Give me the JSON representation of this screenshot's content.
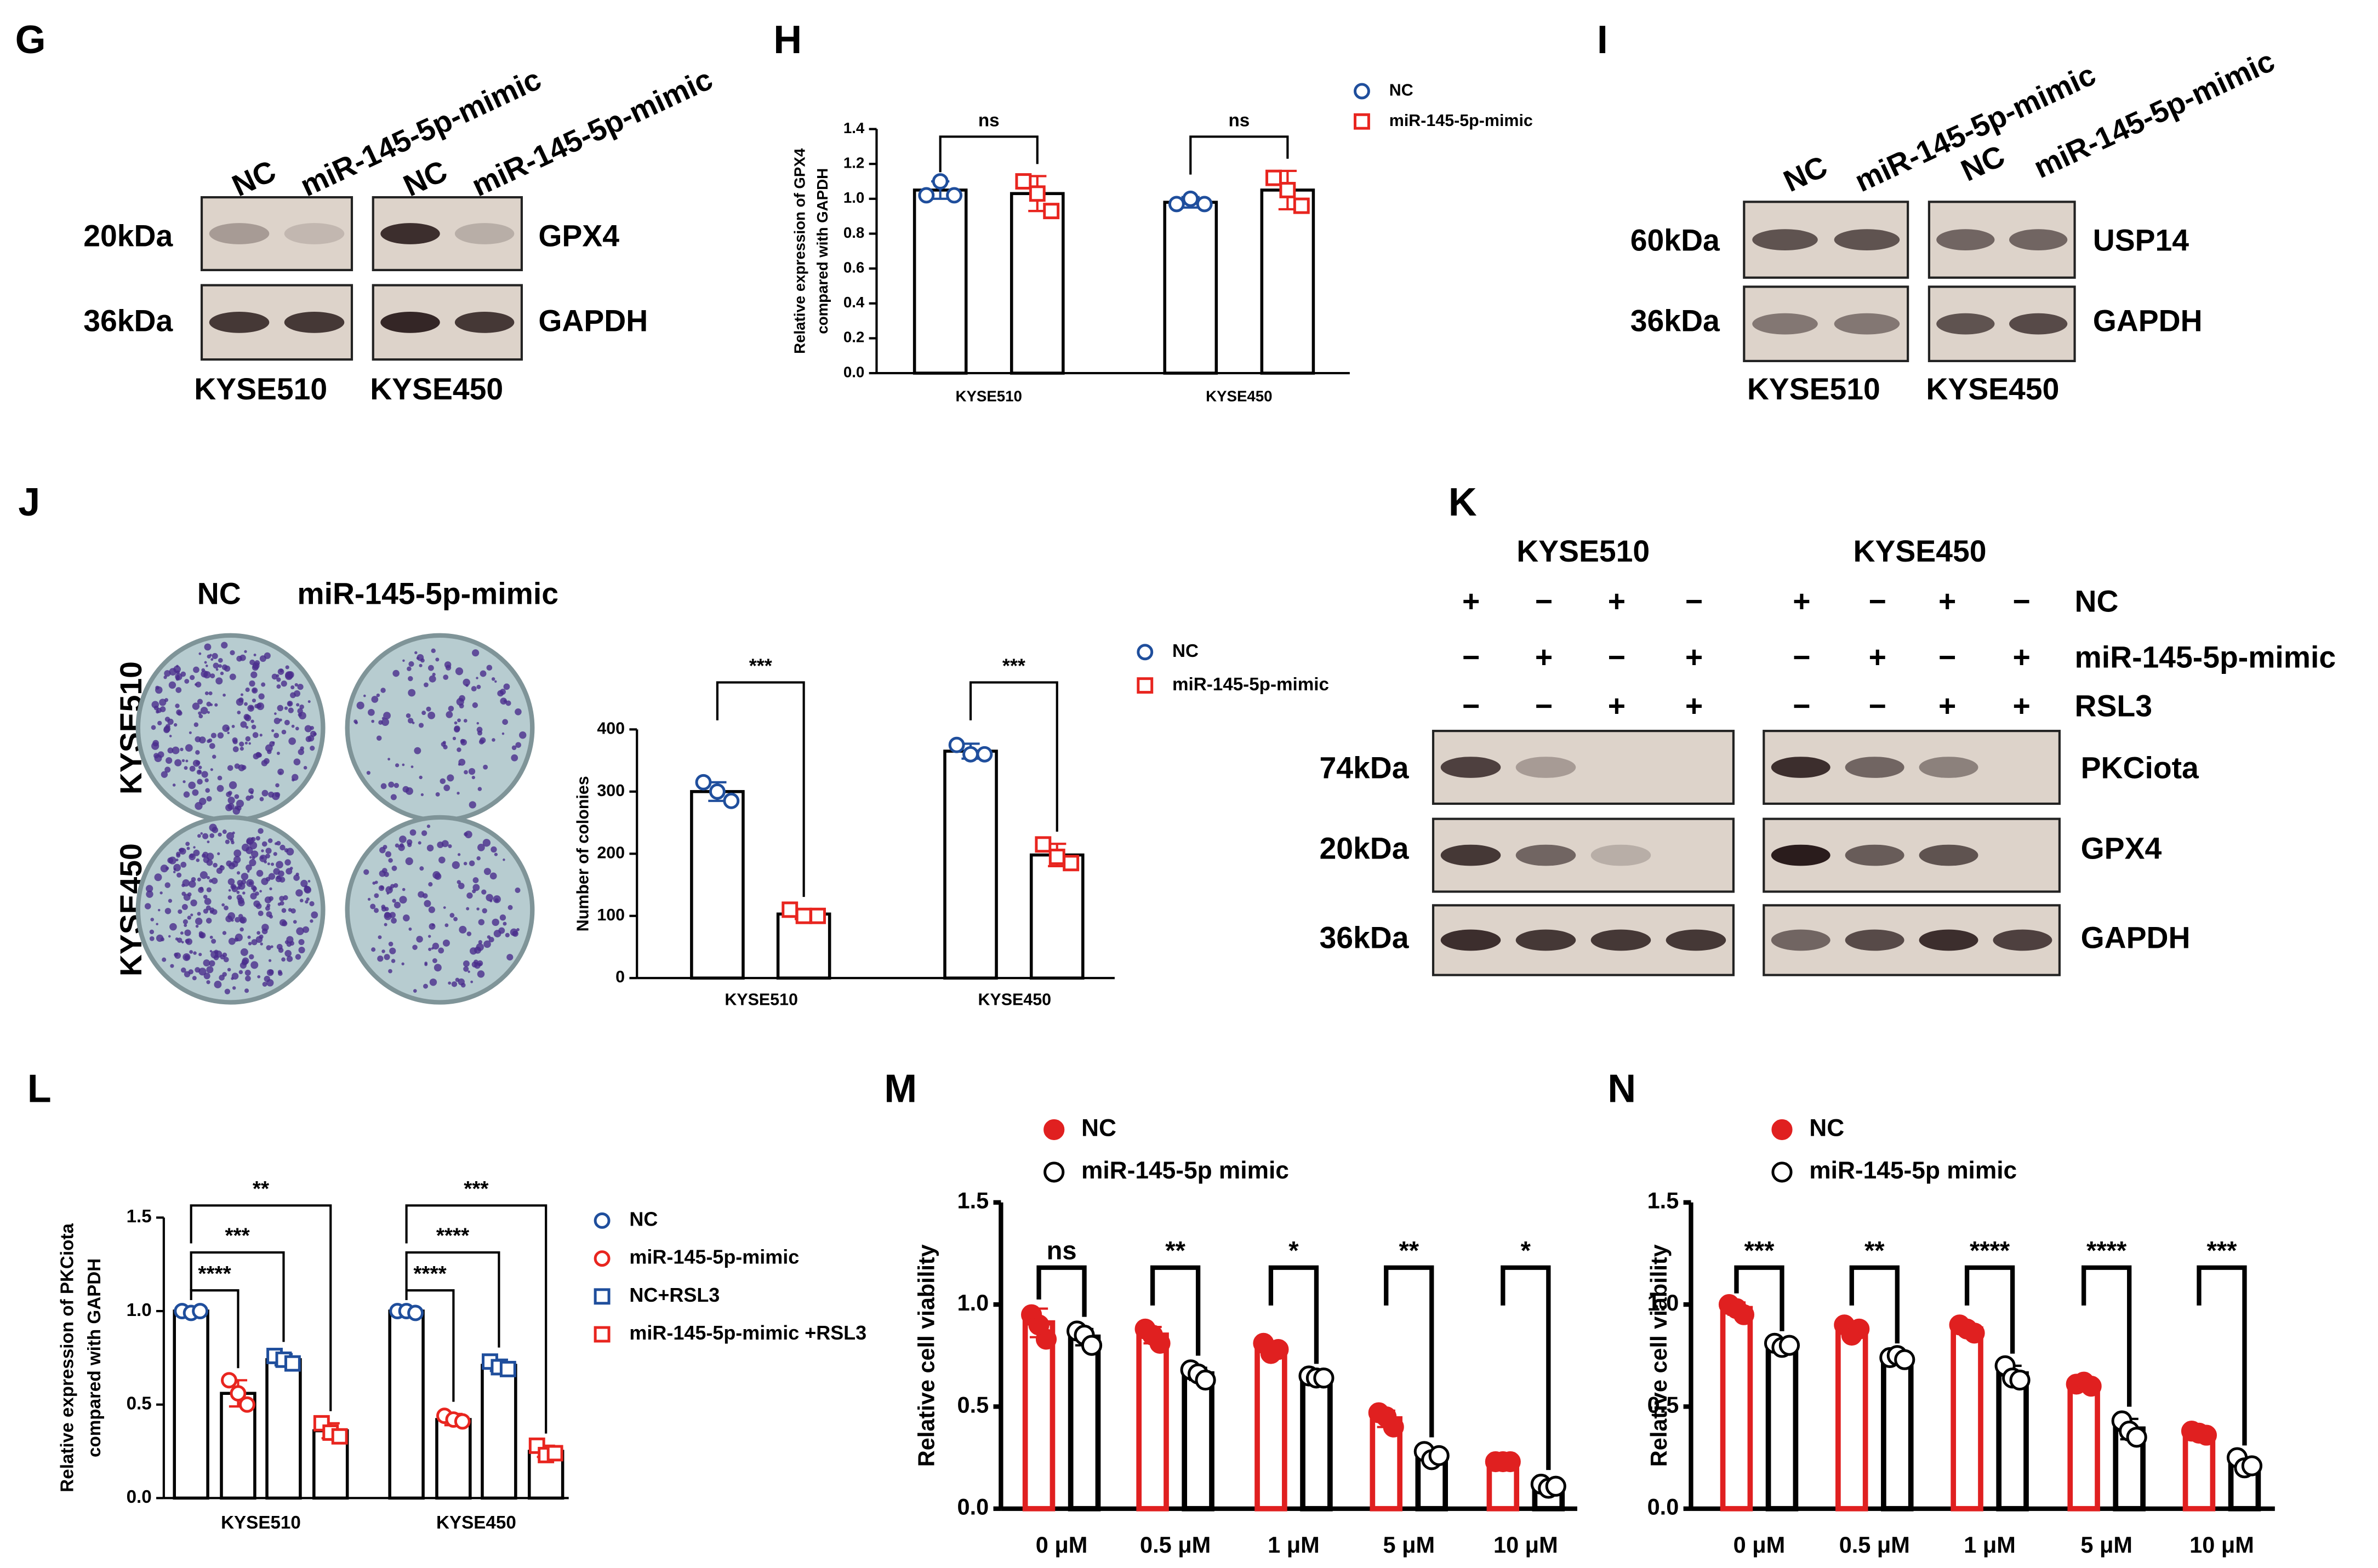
{
  "panel_labels": [
    "G",
    "H",
    "I",
    "J",
    "K",
    "L",
    "M",
    "N"
  ],
  "blots": {
    "G": {
      "lanes": [
        "NC",
        "miR-145-5p-mimic",
        "NC",
        "miR-145-5p-mimic"
      ],
      "markers": [
        "20kDa",
        "36kDa"
      ],
      "proteins": [
        "GPX4",
        "GAPDH"
      ],
      "cell_lines": [
        "KYSE510",
        "KYSE450"
      ]
    },
    "I": {
      "lanes": [
        "NC",
        "miR-145-5p-mimic",
        "NC",
        "miR-145-5p-mimic"
      ],
      "markers": [
        "60kDa",
        "36kDa"
      ],
      "proteins": [
        "USP14",
        "GAPDH"
      ],
      "cell_lines": [
        "KYSE510",
        "KYSE450"
      ]
    },
    "K": {
      "cell_lines": [
        "KYSE510",
        "KYSE450"
      ],
      "conditions": [
        {
          "name": "NC",
          "signs": [
            "+",
            "−",
            "+",
            "−",
            "+",
            "−",
            "+",
            "−"
          ]
        },
        {
          "name": "miR-145-5p-mimic",
          "signs": [
            "−",
            "+",
            "−",
            "+",
            "−",
            "+",
            "−",
            "+"
          ]
        },
        {
          "name": "RSL3",
          "signs": [
            "−",
            "−",
            "+",
            "+",
            "−",
            "−",
            "+",
            "+"
          ]
        }
      ],
      "markers": [
        "74kDa",
        "20kDa",
        "36kDa"
      ],
      "proteins": [
        "PKCiota",
        "GPX4",
        "GAPDH"
      ]
    }
  },
  "colony": {
    "groups": [
      "NC",
      "miR-145-5p-mimic"
    ],
    "cell_lines": [
      "KYSE510",
      "KYSE450"
    ]
  },
  "chart_data": [
    {
      "type": "bar",
      "ylabel": [
        "Relative expression of GPX4",
        "compared with GAPDH"
      ],
      "categories": [
        "KYSE510",
        "KYSE450"
      ],
      "ylim": [
        0,
        1.4
      ],
      "yticks": [
        {
          "value": 0,
          "label": "0.0"
        },
        {
          "value": 0.2,
          "label": "0.2"
        },
        {
          "value": 0.4,
          "label": "0.4"
        },
        {
          "value": 0.6,
          "label": "0.6"
        },
        {
          "value": 0.8,
          "label": "0.8"
        },
        {
          "value": 1,
          "label": "1.0"
        },
        {
          "value": 1.2,
          "label": "1.2"
        },
        {
          "value": 1.4,
          "label": "1.4"
        }
      ],
      "series": [
        {
          "name": "NC",
          "color": "#1f4e9c",
          "bar_color": "#000000",
          "marker": "circle",
          "filled": false,
          "values": [
            1.05,
            0.98
          ],
          "errors": [
            0.05,
            0.03
          ],
          "points": [
            [
              1.02,
              1.1,
              1.02
            ],
            [
              0.97,
              1.0,
              0.97
            ]
          ]
        },
        {
          "name": "miR-145-5p-mimic",
          "color": "#e8251f",
          "bar_color": "#000000",
          "marker": "square",
          "filled": false,
          "values": [
            1.03,
            1.05
          ],
          "errors": [
            0.1,
            0.11
          ],
          "points": [
            [
              1.1,
              1.03,
              0.93
            ],
            [
              1.12,
              1.05,
              0.96
            ]
          ]
        }
      ],
      "significance": [
        "ns",
        "ns"
      ]
    },
    {
      "type": "bar",
      "ylabel": [
        "Number of colonies"
      ],
      "categories": [
        "KYSE510",
        "KYSE450"
      ],
      "ylim": [
        0,
        400
      ],
      "yticks": [
        0,
        100,
        200,
        300,
        400
      ],
      "series": [
        {
          "name": "NC",
          "color": "#1f4e9c",
          "bar_color": "#000000",
          "marker": "circle",
          "filled": false,
          "values": [
            300,
            365
          ],
          "errors": [
            15,
            12
          ],
          "points": [
            [
              315,
              300,
              285
            ],
            [
              375,
              360,
              360
            ]
          ]
        },
        {
          "name": "miR-145-5p-mimic",
          "color": "#e8251f",
          "bar_color": "#000000",
          "marker": "square",
          "filled": false,
          "values": [
            103,
            198
          ],
          "errors": [
            8,
            18
          ],
          "points": [
            [
              110,
              100,
              100
            ],
            [
              215,
              195,
              185
            ]
          ]
        }
      ],
      "significance": [
        "***",
        "***"
      ]
    },
    {
      "type": "bar",
      "ylabel": [
        "Relative expression of PKCiota",
        "compared with GAPDH"
      ],
      "categories": [
        "KYSE510",
        "KYSE450"
      ],
      "ylim": [
        0,
        1.5
      ],
      "yticks": [
        {
          "value": 0,
          "label": "0.0"
        },
        {
          "value": 0.5,
          "label": "0.5"
        },
        {
          "value": 1,
          "label": "1.0"
        },
        {
          "value": 1.5,
          "label": "1.5"
        }
      ],
      "series": [
        {
          "name": "NC",
          "color": "#1f4e9c",
          "bar_color": "#000000",
          "marker": "circle",
          "filled": false,
          "values": [
            1.0,
            1.0
          ],
          "errors": [
            0.01,
            0.01
          ],
          "points": [
            [
              1.0,
              0.99,
              1.0
            ],
            [
              1.0,
              1.0,
              0.99
            ]
          ]
        },
        {
          "name": "miR-145-5p-mimic",
          "color": "#e8251f",
          "bar_color": "#000000",
          "marker": "circle",
          "filled": false,
          "values": [
            0.56,
            0.42
          ],
          "errors": [
            0.07,
            0.03
          ],
          "points": [
            [
              0.63,
              0.56,
              0.5
            ],
            [
              0.44,
              0.42,
              0.41
            ]
          ]
        },
        {
          "name": "NC+RSL3",
          "color": "#1f4e9c",
          "bar_color": "#000000",
          "marker": "square",
          "filled": false,
          "values": [
            0.74,
            0.71
          ],
          "errors": [
            0.03,
            0.03
          ],
          "points": [
            [
              0.76,
              0.74,
              0.72
            ],
            [
              0.73,
              0.7,
              0.69
            ]
          ]
        },
        {
          "name": "miR-145-5p-mimic +RSL3",
          "color": "#e8251f",
          "bar_color": "#000000",
          "marker": "square",
          "filled": false,
          "values": [
            0.36,
            0.25
          ],
          "errors": [
            0.04,
            0.03
          ],
          "points": [
            [
              0.4,
              0.35,
              0.33
            ],
            [
              0.28,
              0.23,
              0.24
            ]
          ]
        }
      ],
      "significance": [
        [
          "****",
          "***",
          "**"
        ],
        [
          "****",
          "****",
          "***"
        ]
      ]
    },
    {
      "type": "bar",
      "ylabel": [
        "Relative cell viability"
      ],
      "categories": [
        "0 μM",
        "0.5 μM",
        "1 μM",
        "5 μM",
        "10 μM"
      ],
      "ylim": [
        0,
        1.5
      ],
      "yticks": [
        {
          "value": 0,
          "label": "0.0"
        },
        {
          "value": 0.5,
          "label": "0.5"
        },
        {
          "value": 1,
          "label": "1.0"
        },
        {
          "value": 1.5,
          "label": "1.5"
        }
      ],
      "series": [
        {
          "name": "NC",
          "color": "#e02020",
          "bar_color": "#e02020",
          "marker": "circle",
          "filled": true,
          "values": [
            0.91,
            0.85,
            0.78,
            0.44,
            0.23
          ],
          "errors": [
            0.07,
            0.04,
            0.04,
            0.04,
            0.01
          ],
          "points": [
            [
              0.95,
              0.9,
              0.83
            ],
            [
              0.88,
              0.85,
              0.81
            ],
            [
              0.81,
              0.76,
              0.78
            ],
            [
              0.47,
              0.45,
              0.4
            ],
            [
              0.23,
              0.23,
              0.23
            ]
          ]
        },
        {
          "name": "miR-145-5p mimic",
          "color": "#000000",
          "bar_color": "#000000",
          "marker": "circle",
          "filled": false,
          "values": [
            0.84,
            0.66,
            0.64,
            0.26,
            0.11
          ],
          "errors": [
            0.04,
            0.03,
            0.01,
            0.03,
            0.02
          ],
          "points": [
            [
              0.87,
              0.85,
              0.8
            ],
            [
              0.68,
              0.66,
              0.63
            ],
            [
              0.65,
              0.64,
              0.64
            ],
            [
              0.28,
              0.24,
              0.26
            ],
            [
              0.12,
              0.1,
              0.11
            ]
          ]
        }
      ],
      "significance": [
        "ns",
        "**",
        "*",
        "**",
        "*"
      ]
    },
    {
      "type": "bar",
      "ylabel": [
        "Relative cell viability"
      ],
      "categories": [
        "0 μM",
        "0.5 μM",
        "1 μM",
        "5 μM",
        "10 μM"
      ],
      "ylim": [
        0,
        1.5
      ],
      "yticks": [
        {
          "value": 0,
          "label": "0.0"
        },
        {
          "value": 0.5,
          "label": "0.5"
        },
        {
          "value": 1,
          "label": "1.0"
        },
        {
          "value": 1.5,
          "label": "1.5"
        }
      ],
      "series": [
        {
          "name": "NC",
          "color": "#e02020",
          "bar_color": "#e02020",
          "marker": "circle",
          "filled": true,
          "values": [
            0.98,
            0.88,
            0.88,
            0.61,
            0.37
          ],
          "errors": [
            0.03,
            0.03,
            0.02,
            0.01,
            0.02
          ],
          "points": [
            [
              1.0,
              0.98,
              0.95
            ],
            [
              0.9,
              0.85,
              0.88
            ],
            [
              0.9,
              0.88,
              0.86
            ],
            [
              0.61,
              0.62,
              0.6
            ],
            [
              0.38,
              0.37,
              0.36
            ]
          ]
        },
        {
          "name": "miR-145-5p mimic",
          "color": "#000000",
          "bar_color": "#000000",
          "marker": "circle",
          "filled": false,
          "values": [
            0.8,
            0.74,
            0.66,
            0.39,
            0.22
          ],
          "errors": [
            0.01,
            0.01,
            0.04,
            0.05,
            0.03
          ],
          "points": [
            [
              0.81,
              0.79,
              0.8
            ],
            [
              0.74,
              0.75,
              0.73
            ],
            [
              0.7,
              0.64,
              0.63
            ],
            [
              0.43,
              0.38,
              0.35
            ],
            [
              0.25,
              0.2,
              0.21
            ]
          ]
        }
      ],
      "significance": [
        "***",
        "**",
        "****",
        "****",
        "***"
      ]
    }
  ]
}
